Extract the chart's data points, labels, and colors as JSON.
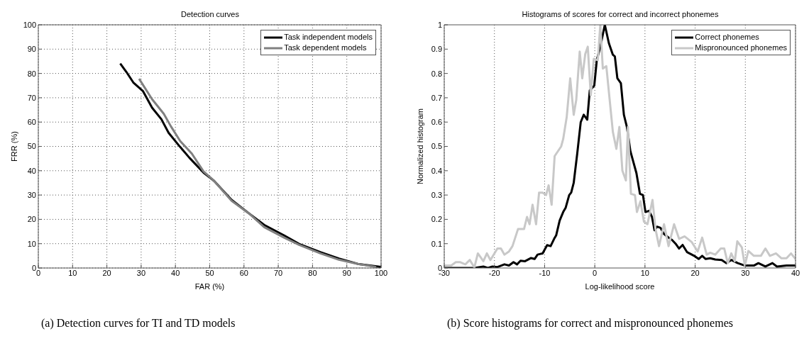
{
  "chart_data": [
    {
      "type": "line",
      "title": "Detection curves",
      "xlabel": "FAR (%)",
      "ylabel": "FRR (%)",
      "xlim": [
        0,
        100
      ],
      "ylim": [
        0,
        100
      ],
      "xticks": [
        0,
        10,
        20,
        30,
        40,
        50,
        60,
        70,
        80,
        90,
        100
      ],
      "yticks": [
        0,
        10,
        20,
        30,
        40,
        50,
        60,
        70,
        80,
        90,
        100
      ],
      "grid": true,
      "legend": "top right",
      "annotations": [
        "(a) Detection curves for TI and TD models"
      ],
      "series": [
        {
          "name": "Task independent models",
          "color": "#000000",
          "x": [
            23.9,
            25.7,
            27.7,
            30.5,
            33.2,
            35.9,
            38,
            41,
            44.1,
            48.2,
            51.3,
            56.4,
            61.5,
            65.9,
            71.7,
            76.1,
            82.3,
            87.7,
            93.2,
            100
          ],
          "values": [
            84.1,
            80.6,
            76.3,
            72.8,
            65.9,
            61.2,
            55.6,
            50.4,
            45.3,
            39.2,
            35.8,
            28,
            22.4,
            17.7,
            13.4,
            9.9,
            6.5,
            3.9,
            1.7,
            0.4
          ]
        },
        {
          "name": "Task dependent models",
          "color": "#808080",
          "x": [
            29.4,
            33.2,
            36.6,
            38.7,
            41.4,
            44.8,
            48.2,
            51.3,
            56.4,
            61.5,
            65.9,
            71.7,
            76.1,
            82.3,
            87.7,
            93.2,
            98.6
          ],
          "values": [
            77.8,
            69.4,
            63.4,
            58.2,
            52.2,
            47,
            39.7,
            35.8,
            27.6,
            22.4,
            16.8,
            12.5,
            9.5,
            6,
            3.4,
            1.7,
            0.4
          ]
        }
      ]
    },
    {
      "type": "line",
      "title": "Histograms of scores for correct and incorrect phonemes",
      "xlabel": "Log-likelihood score",
      "ylabel": "Normalized histogram",
      "xlim": [
        -30,
        40
      ],
      "ylim": [
        0,
        1
      ],
      "xticks": [
        -30,
        -20,
        -10,
        0,
        10,
        20,
        30,
        40
      ],
      "yticks": [
        0,
        0.1,
        0.2,
        0.3,
        0.4,
        0.5,
        0.6,
        0.7,
        0.8,
        0.9,
        1
      ],
      "grid": "x",
      "legend": "top right",
      "annotations": [
        "(b) Score histograms for correct and mispronounced phonemes"
      ],
      "series": [
        {
          "name": "Correct phonemes",
          "color": "#000000",
          "x": [
            -30,
            -24,
            -22.2,
            -21.3,
            -20.4,
            -19.4,
            -18,
            -17.1,
            -16.2,
            -15.5,
            -14.8,
            -13.9,
            -12.7,
            -12,
            -11.4,
            -10.4,
            -9.5,
            -8.8,
            -8.1,
            -7.7,
            -7,
            -6.3,
            -5.8,
            -5.1,
            -4.7,
            -4.2,
            -3.5,
            -2.8,
            -2.2,
            -1.5,
            -1,
            -0.1,
            0.4,
            1.1,
            2,
            2.8,
            3.6,
            4,
            4.5,
            5.2,
            5.8,
            6.4,
            7.1,
            8.3,
            9,
            9.6,
            10.1,
            10.8,
            11.4,
            11.9,
            12.4,
            13.1,
            13.8,
            14.7,
            15.4,
            16.1,
            16.8,
            17.5,
            18.4,
            19.8,
            20.7,
            21.4,
            22.1,
            23,
            24,
            25.3,
            26.2,
            27.2,
            28.5,
            29.9,
            31.7,
            32.6,
            34,
            35.4,
            36.3,
            38.2,
            40
          ],
          "values": [
            0,
            0,
            0.006,
            0,
            0.006,
            0.004,
            0.015,
            0.01,
            0.024,
            0.015,
            0.03,
            0.028,
            0.041,
            0.037,
            0.055,
            0.06,
            0.094,
            0.09,
            0.12,
            0.134,
            0.195,
            0.23,
            0.248,
            0.3,
            0.31,
            0.35,
            0.47,
            0.6,
            0.63,
            0.61,
            0.73,
            0.75,
            0.855,
            0.91,
            1,
            0.925,
            0.877,
            0.87,
            0.78,
            0.76,
            0.63,
            0.58,
            0.48,
            0.39,
            0.305,
            0.3,
            0.23,
            0.235,
            0.21,
            0.155,
            0.17,
            0.165,
            0.14,
            0.125,
            0.115,
            0.1,
            0.08,
            0.095,
            0.065,
            0.05,
            0.037,
            0.05,
            0.037,
            0.04,
            0.035,
            0.033,
            0.02,
            0.033,
            0.02,
            0.01,
            0.01,
            0.02,
            0.006,
            0.02,
            0.006,
            0.01,
            0.01
          ]
        },
        {
          "name": "Mispronounced phonemes",
          "color": "#c8c8c8",
          "x": [
            -30,
            -28.6,
            -27.7,
            -26.8,
            -25.8,
            -24.9,
            -24,
            -23.3,
            -22.2,
            -21.5,
            -20.8,
            -19.4,
            -18.7,
            -18,
            -17.1,
            -16.4,
            -15.3,
            -14.1,
            -13.5,
            -13,
            -12.4,
            -11.7,
            -11.1,
            -10.4,
            -9.7,
            -9.2,
            -8.6,
            -8,
            -6.7,
            -6.3,
            -5.6,
            -4.9,
            -4.2,
            -3.7,
            -3,
            -2.5,
            -1.9,
            -1.4,
            -0.8,
            -0.2,
            0.6,
            1.1,
            1.6,
            2.3,
            3.6,
            4.3,
            4.9,
            5.5,
            6.2,
            6.6,
            7.2,
            8,
            8.4,
            9.1,
            9.8,
            10.5,
            11.5,
            12.1,
            12.8,
            13.8,
            14.7,
            15.8,
            16.8,
            17.9,
            19.3,
            20.5,
            21.4,
            22.3,
            23,
            24,
            25.1,
            25.8,
            26.5,
            27.2,
            27.9,
            28.4,
            29.3,
            29.9,
            30.6,
            31.7,
            33.1,
            34,
            34.9,
            36.1,
            37.2,
            38.2,
            39.1,
            40
          ],
          "values": [
            0.01,
            0.01,
            0.024,
            0.024,
            0.015,
            0.033,
            0.002,
            0.06,
            0.028,
            0.06,
            0.033,
            0.08,
            0.08,
            0.055,
            0.068,
            0.09,
            0.16,
            0.16,
            0.21,
            0.18,
            0.26,
            0.18,
            0.31,
            0.31,
            0.3,
            0.34,
            0.26,
            0.46,
            0.5,
            0.53,
            0.62,
            0.78,
            0.63,
            0.69,
            0.89,
            0.78,
            0.88,
            0.91,
            0.71,
            0.86,
            0.855,
            1,
            0.82,
            0.83,
            0.56,
            0.49,
            0.58,
            0.4,
            0.36,
            0.58,
            0.305,
            0.3,
            0.23,
            0.275,
            0.19,
            0.18,
            0.28,
            0.16,
            0.09,
            0.18,
            0.09,
            0.18,
            0.12,
            0.13,
            0.107,
            0.068,
            0.125,
            0.055,
            0.063,
            0.055,
            0.08,
            0.08,
            0.02,
            0.06,
            0.028,
            0.11,
            0.085,
            0.01,
            0.07,
            0.05,
            0.05,
            0.08,
            0.05,
            0.06,
            0.04,
            0.04,
            0.06,
            0.037
          ]
        }
      ]
    }
  ]
}
